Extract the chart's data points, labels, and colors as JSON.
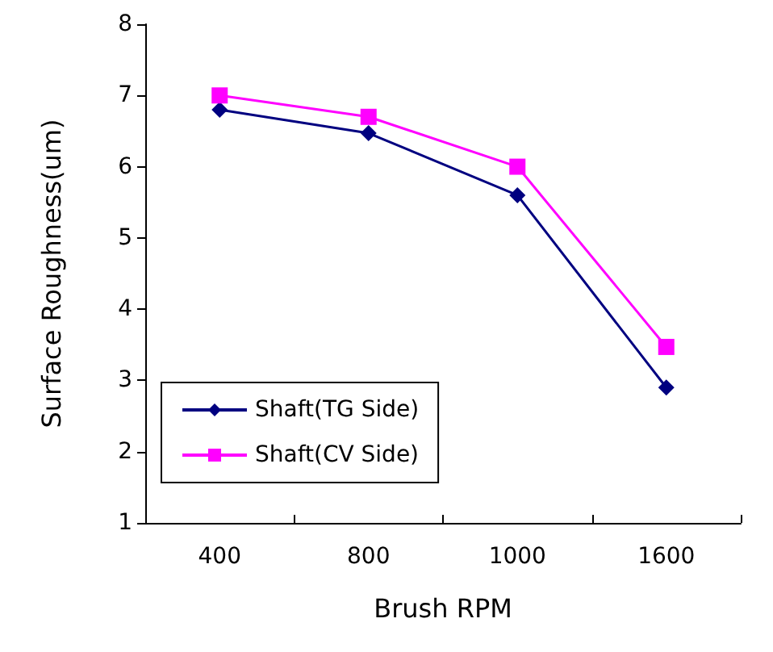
{
  "chart_data": {
    "type": "line",
    "xlabel": "Brush RPM",
    "ylabel": "Surface Roughness(um)",
    "categories": [
      "400",
      "800",
      "1000",
      "1600"
    ],
    "series": [
      {
        "name": "Shaft(TG Side)",
        "color": "#000080",
        "marker": "diamond",
        "values": [
          6.8,
          6.47,
          5.6,
          2.9
        ]
      },
      {
        "name": "Shaft(CV Side)",
        "color": "#ff00ff",
        "marker": "square",
        "values": [
          7.0,
          6.7,
          6.0,
          3.47
        ]
      }
    ],
    "ylim": [
      1,
      8
    ],
    "yticks": [
      1,
      2,
      3,
      4,
      5,
      6,
      7,
      8
    ],
    "grid": false,
    "legend": "bottom left",
    "line_style": "solid"
  }
}
